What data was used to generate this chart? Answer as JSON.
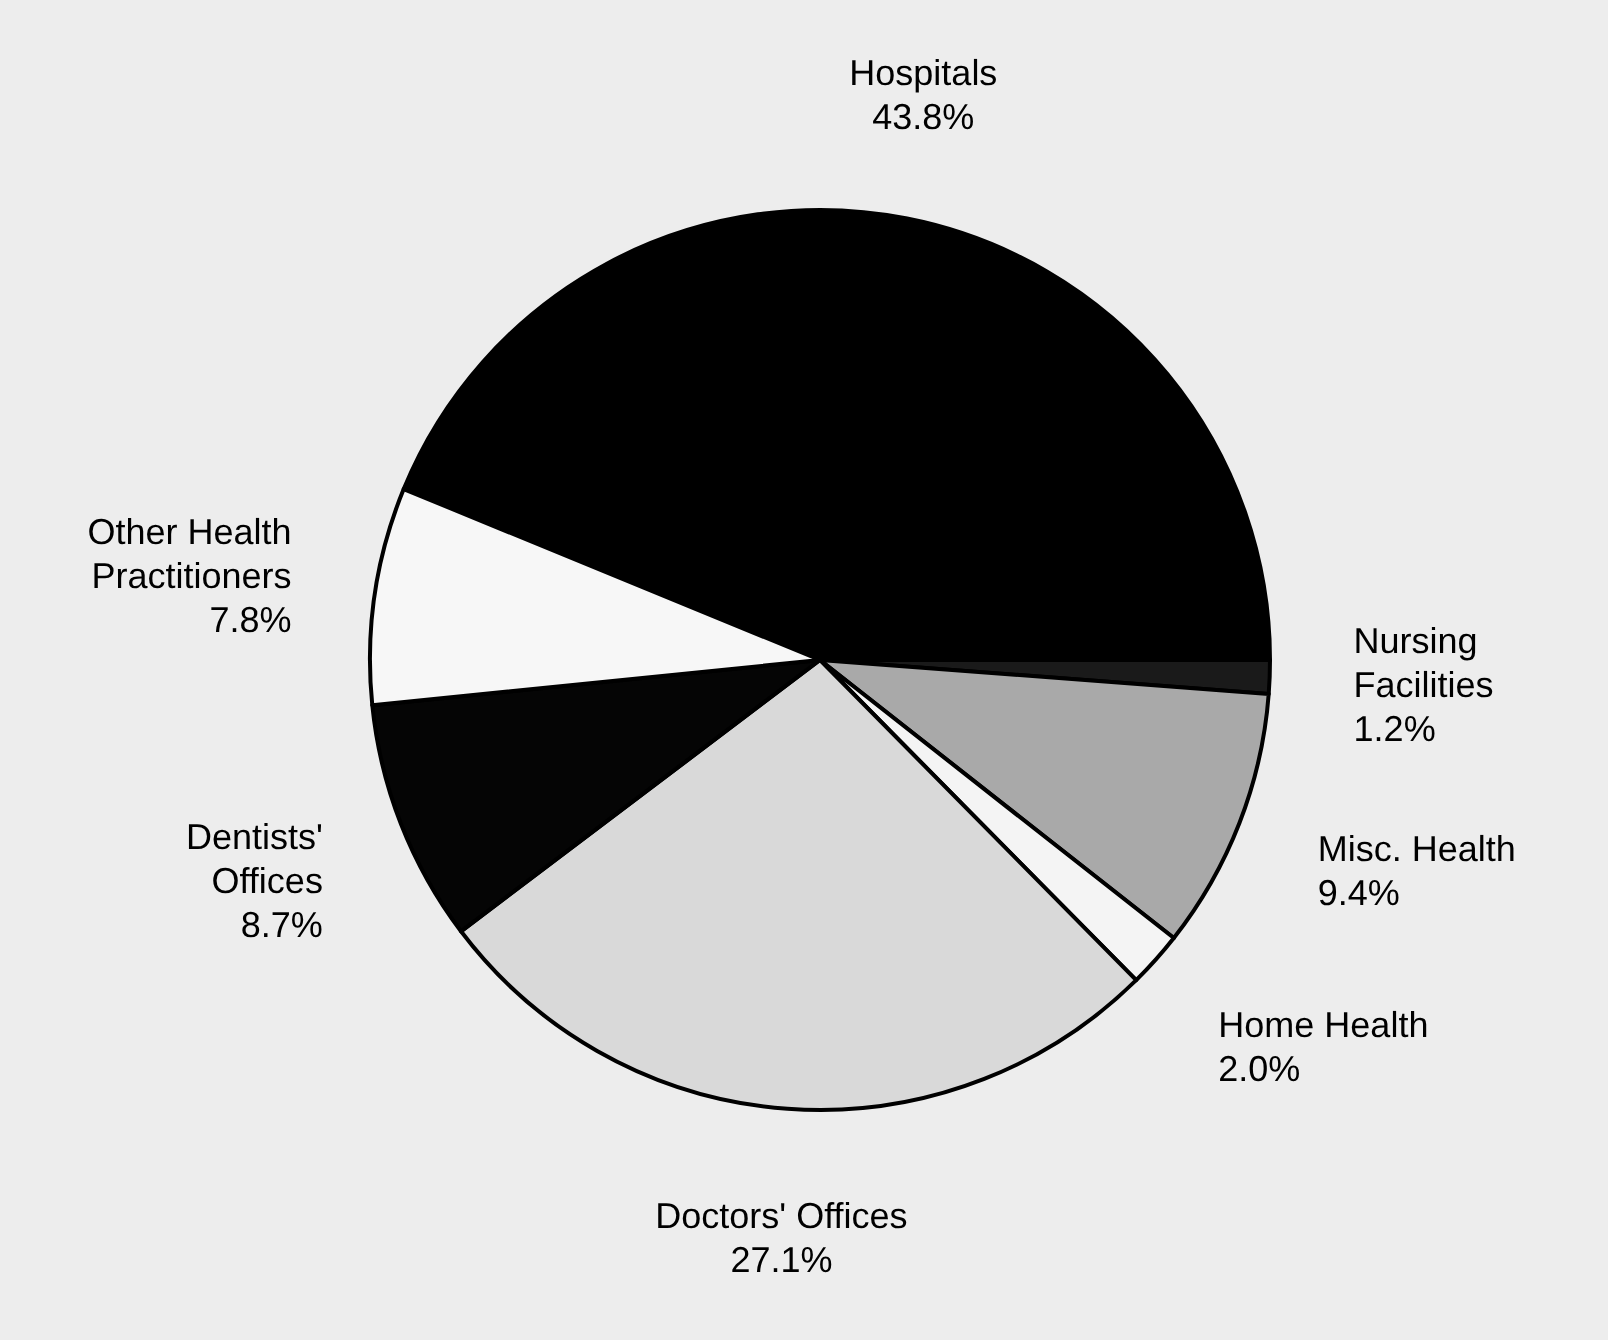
{
  "chart_data": {
    "type": "pie",
    "categories": [
      "Hospitals",
      "Nursing Facilities",
      "Misc. Health",
      "Home Health",
      "Doctors' Offices",
      "Dentists' Offices",
      "Other Health Practitioners"
    ],
    "values": [
      43.8,
      1.2,
      9.4,
      2.0,
      27.1,
      8.7,
      7.8
    ],
    "value_labels": [
      "43.8%",
      "1.2%",
      "9.4%",
      "2.0%",
      "27.1%",
      "8.7%",
      "7.8%"
    ],
    "colors": [
      "#000000",
      "#1a1a1a",
      "#a9a9a9",
      "#f4f4f4",
      "#d9d9d9",
      "#050505",
      "#f7f7f7"
    ]
  }
}
